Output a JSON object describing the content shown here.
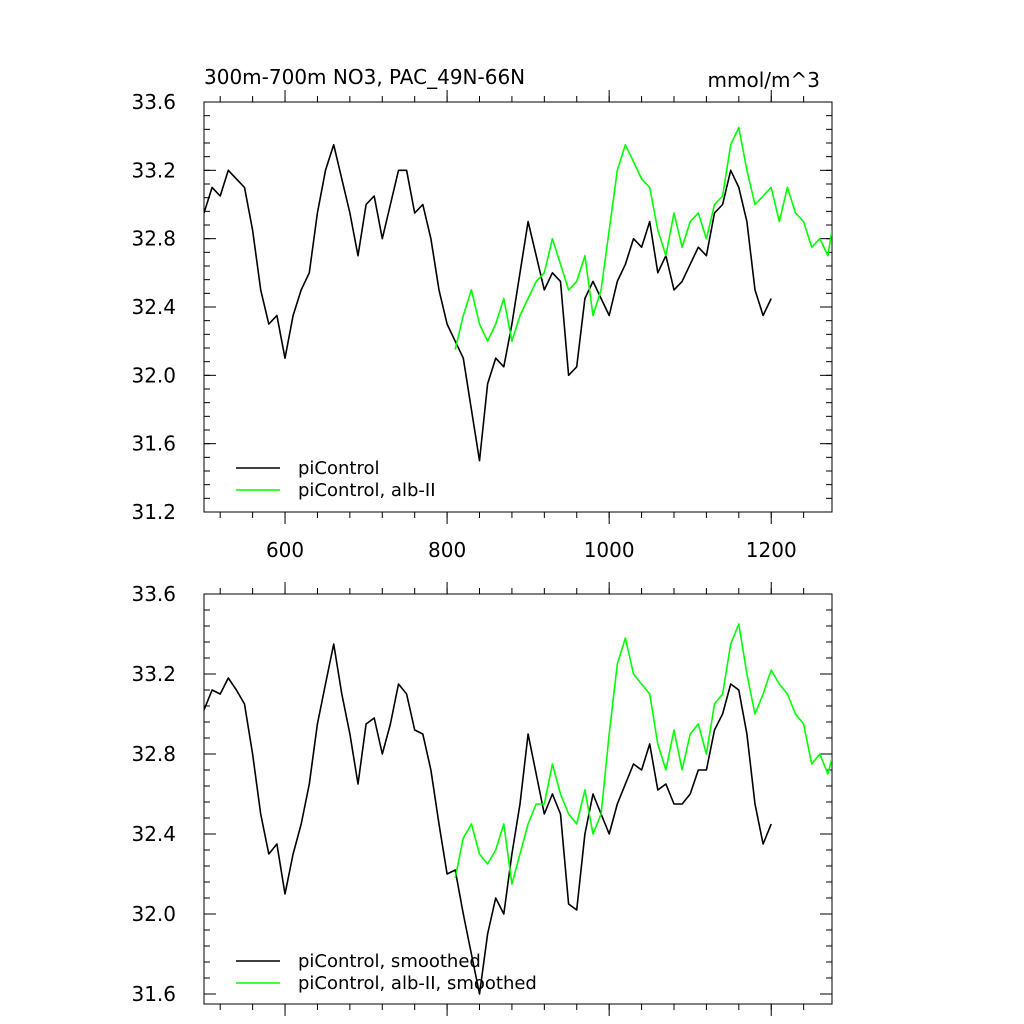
{
  "chart_data": [
    {
      "type": "line",
      "title": "300m-700m NO3, PAC_49N-66N",
      "units": "mmol/m^3",
      "xlim": [
        500,
        1275
      ],
      "ylim": [
        31.2,
        33.6
      ],
      "xticks": [
        600,
        800,
        1000,
        1200
      ],
      "xtick_labels": [
        "600",
        "800",
        "1000",
        "1200"
      ],
      "yticks": [
        31.2,
        31.6,
        32.0,
        32.4,
        32.8,
        33.2,
        33.6
      ],
      "ytick_labels": [
        "31.2",
        "31.6",
        "32.0",
        "32.4",
        "32.8",
        "33.2",
        "33.6"
      ],
      "legend_position": "bottom-left",
      "series": [
        {
          "name": "piControl",
          "color": "#000000",
          "x": [
            500,
            510,
            520,
            530,
            540,
            550,
            560,
            570,
            580,
            590,
            600,
            610,
            620,
            630,
            640,
            650,
            660,
            670,
            680,
            690,
            700,
            710,
            720,
            730,
            740,
            750,
            760,
            770,
            780,
            790,
            800,
            810,
            820,
            830,
            840,
            850,
            860,
            870,
            880,
            890,
            900,
            910,
            920,
            930,
            940,
            950,
            960,
            970,
            980,
            990,
            1000,
            1010,
            1020,
            1030,
            1040,
            1050,
            1060,
            1070,
            1080,
            1090,
            1100,
            1110,
            1120,
            1130,
            1140,
            1150,
            1160,
            1170,
            1180,
            1190,
            1200
          ],
          "values": [
            32.95,
            33.1,
            33.05,
            33.2,
            33.15,
            33.1,
            32.85,
            32.5,
            32.3,
            32.35,
            32.1,
            32.35,
            32.5,
            32.6,
            32.95,
            33.2,
            33.35,
            33.15,
            32.95,
            32.7,
            33.0,
            33.05,
            32.8,
            33.0,
            33.2,
            33.2,
            32.95,
            33.0,
            32.8,
            32.5,
            32.3,
            32.2,
            32.1,
            31.8,
            31.5,
            31.95,
            32.1,
            32.05,
            32.3,
            32.6,
            32.9,
            32.7,
            32.5,
            32.6,
            32.55,
            32.0,
            32.05,
            32.45,
            32.55,
            32.45,
            32.35,
            32.55,
            32.65,
            32.8,
            32.75,
            32.9,
            32.6,
            32.7,
            32.5,
            32.55,
            32.65,
            32.75,
            32.7,
            32.95,
            33.0,
            33.2,
            33.1,
            32.9,
            32.5,
            32.35,
            32.45
          ]
        },
        {
          "name": "piControl, alb-II",
          "color": "#00ff00",
          "x": [
            810,
            820,
            830,
            840,
            850,
            860,
            870,
            880,
            890,
            900,
            910,
            920,
            930,
            940,
            950,
            960,
            970,
            980,
            990,
            1000,
            1010,
            1020,
            1030,
            1040,
            1050,
            1060,
            1070,
            1080,
            1090,
            1100,
            1110,
            1120,
            1130,
            1140,
            1150,
            1160,
            1170,
            1180,
            1190,
            1200,
            1210,
            1220,
            1230,
            1240,
            1250,
            1260,
            1270,
            1275
          ],
          "values": [
            32.15,
            32.35,
            32.5,
            32.3,
            32.2,
            32.3,
            32.45,
            32.2,
            32.35,
            32.45,
            32.55,
            32.6,
            32.8,
            32.65,
            32.5,
            32.55,
            32.7,
            32.35,
            32.5,
            32.85,
            33.2,
            33.35,
            33.25,
            33.15,
            33.1,
            32.85,
            32.7,
            32.95,
            32.75,
            32.9,
            32.95,
            32.8,
            33.0,
            33.05,
            33.35,
            33.45,
            33.2,
            33.0,
            33.05,
            33.1,
            32.9,
            33.1,
            32.95,
            32.9,
            32.75,
            32.8,
            32.7,
            32.85
          ]
        }
      ]
    },
    {
      "type": "line",
      "title": "",
      "units": "",
      "xlim": [
        500,
        1275
      ],
      "ylim": [
        31.55,
        33.6
      ],
      "xticks": [
        600,
        800,
        1000,
        1200
      ],
      "xtick_labels": [],
      "yticks": [
        31.6,
        32.0,
        32.4,
        32.8,
        33.2,
        33.6
      ],
      "ytick_labels": [
        "31.6",
        "32.0",
        "32.4",
        "32.8",
        "33.2",
        "33.6"
      ],
      "legend_position": "bottom-left",
      "series": [
        {
          "name": "piControl, smoothed",
          "color": "#000000",
          "x": [
            500,
            510,
            520,
            530,
            540,
            550,
            560,
            570,
            580,
            590,
            600,
            610,
            620,
            630,
            640,
            650,
            660,
            670,
            680,
            690,
            700,
            710,
            720,
            730,
            740,
            750,
            760,
            770,
            780,
            790,
            800,
            810,
            820,
            830,
            840,
            850,
            860,
            870,
            880,
            890,
            900,
            910,
            920,
            930,
            940,
            950,
            960,
            970,
            980,
            990,
            1000,
            1010,
            1020,
            1030,
            1040,
            1050,
            1060,
            1070,
            1080,
            1090,
            1100,
            1110,
            1120,
            1130,
            1140,
            1150,
            1160,
            1170,
            1180,
            1190,
            1200
          ],
          "values": [
            33.02,
            33.12,
            33.1,
            33.18,
            33.12,
            33.05,
            32.8,
            32.5,
            32.3,
            32.35,
            32.1,
            32.3,
            32.45,
            32.65,
            32.95,
            33.15,
            33.35,
            33.1,
            32.9,
            32.65,
            32.95,
            32.98,
            32.8,
            32.95,
            33.15,
            33.1,
            32.92,
            32.9,
            32.72,
            32.45,
            32.2,
            32.22,
            32.0,
            31.8,
            31.6,
            31.9,
            32.08,
            32.0,
            32.3,
            32.55,
            32.9,
            32.7,
            32.5,
            32.6,
            32.5,
            32.05,
            32.02,
            32.4,
            32.6,
            32.5,
            32.4,
            32.55,
            32.65,
            32.75,
            32.72,
            32.85,
            32.62,
            32.65,
            32.55,
            32.55,
            32.6,
            32.72,
            32.72,
            32.92,
            33.0,
            33.15,
            33.12,
            32.9,
            32.55,
            32.35,
            32.45
          ]
        },
        {
          "name": "piControl, alb-II, smoothed",
          "color": "#00ff00",
          "x": [
            810,
            820,
            830,
            840,
            850,
            860,
            870,
            880,
            890,
            900,
            910,
            920,
            930,
            940,
            950,
            960,
            970,
            980,
            990,
            1000,
            1010,
            1020,
            1030,
            1040,
            1050,
            1060,
            1070,
            1080,
            1090,
            1100,
            1110,
            1120,
            1130,
            1140,
            1150,
            1160,
            1170,
            1180,
            1190,
            1200,
            1210,
            1220,
            1230,
            1240,
            1250,
            1260,
            1270,
            1275
          ],
          "values": [
            32.18,
            32.38,
            32.45,
            32.3,
            32.25,
            32.32,
            32.45,
            32.15,
            32.3,
            32.45,
            32.55,
            32.55,
            32.75,
            32.6,
            32.5,
            32.45,
            32.62,
            32.4,
            32.5,
            32.9,
            33.25,
            33.38,
            33.2,
            33.15,
            33.1,
            32.85,
            32.72,
            32.92,
            32.72,
            32.9,
            32.95,
            32.8,
            33.05,
            33.1,
            33.35,
            33.45,
            33.2,
            33.0,
            33.1,
            33.22,
            33.15,
            33.1,
            33.0,
            32.95,
            32.75,
            32.8,
            32.7,
            32.78
          ]
        }
      ]
    }
  ]
}
